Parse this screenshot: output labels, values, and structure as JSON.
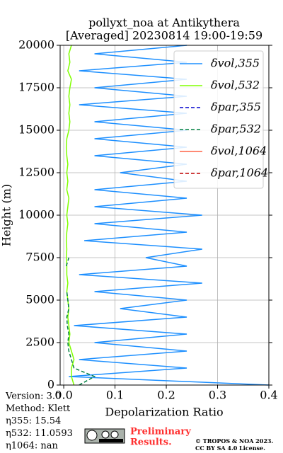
{
  "chart_data": {
    "type": "profile",
    "title": [
      "pollyxt_noa at Antikythera",
      "[Averaged] 20230814 19:00-19:59"
    ],
    "xlabel": "Depolarization Ratio",
    "ylabel": "Height (m)",
    "xlim": [
      -0.007,
      0.4
    ],
    "ylim": [
      0,
      20000
    ],
    "xticks": [
      {
        "value": 0,
        "label": "0.0"
      },
      0.1,
      0.2,
      0.3,
      0.4
    ],
    "yticks": [
      0,
      2500,
      5000,
      7500,
      10000,
      12500,
      15000,
      17500,
      20000
    ],
    "grid": true,
    "legend": "upper right",
    "y": [
      0,
      500,
      1000,
      1500,
      2000,
      2500,
      3000,
      3500,
      4000,
      4500,
      5000,
      5500,
      6000,
      6500,
      7000,
      7500,
      8000,
      8500,
      9000,
      9500,
      10000,
      10500,
      11000,
      11500,
      12000,
      12500,
      13000,
      13500,
      14000,
      14500,
      15000,
      15500,
      16000,
      16500,
      17000,
      17500,
      18000,
      18500,
      19000,
      19500,
      20000
    ],
    "series": [
      {
        "name": "δvol,355",
        "color": "#1e90ff",
        "dash": "solid",
        "values": [
          0.4,
          0.01,
          0.24,
          0.03,
          0.24,
          0.06,
          0.24,
          0.02,
          0.24,
          0.11,
          0.24,
          0.06,
          0.27,
          0.03,
          0.24,
          0.16,
          0.27,
          0.04,
          0.24,
          0.06,
          0.27,
          0.06,
          0.24,
          0.06,
          0.24,
          0.11,
          0.24,
          0.06,
          0.24,
          0.06,
          0.24,
          0.06,
          0.24,
          0.03,
          0.24,
          0.06,
          0.24,
          0.03,
          0.24,
          0.06,
          0.24
        ]
      },
      {
        "name": "δvol,532",
        "color": "#80ff00",
        "dash": "solid",
        "values": [
          0.02,
          0.015,
          0.015,
          0.02,
          0.015,
          0.01,
          0.012,
          0.01,
          0.008,
          0.01,
          0.008,
          0.006,
          0.008,
          0.006,
          0.006,
          0.005,
          0.006,
          0.005,
          0.006,
          0.008,
          0.006,
          0.008,
          0.01,
          0.006,
          0.008,
          0.006,
          0.008,
          0.006,
          0.005,
          0.006,
          0.01,
          0.012,
          0.01,
          0.012,
          0.01,
          0.012,
          0.015,
          0.008,
          0.012,
          0.01,
          0.015
        ]
      },
      {
        "name": "δpar,355",
        "color": "#0000cd",
        "dash": "dashed",
        "values": [
          null,
          null,
          null,
          null,
          null,
          null,
          null,
          null,
          null,
          null,
          null,
          null,
          null,
          null,
          null,
          null,
          null,
          null,
          null,
          null,
          null,
          null,
          null,
          null,
          null,
          null,
          null,
          null,
          null,
          null,
          null,
          null,
          null,
          null,
          null,
          null,
          null,
          null,
          null,
          null,
          null
        ]
      },
      {
        "name": "δpar,532",
        "color": "#008040",
        "dash": "dashed",
        "values": [
          0.03,
          0.06,
          0.02,
          0.015,
          0.01,
          0.008,
          0.01,
          0.007,
          0.006,
          0.01,
          0.008,
          0.006,
          null,
          null,
          0.005,
          0.01,
          null,
          null,
          null,
          null,
          null,
          null,
          0.01,
          null,
          null,
          null,
          null,
          null,
          null,
          null,
          null,
          null,
          null,
          0.015,
          null,
          null,
          null,
          null,
          null,
          null,
          0.02
        ]
      },
      {
        "name": "δvol,1064",
        "color": "#ff6347",
        "dash": "solid",
        "values": [
          null,
          null,
          null,
          null,
          null,
          null,
          null,
          null,
          null,
          null,
          null,
          null,
          null,
          null,
          null,
          null,
          null,
          null,
          null,
          null,
          null,
          null,
          null,
          null,
          null,
          null,
          null,
          null,
          null,
          null,
          null,
          null,
          null,
          null,
          null,
          null,
          null,
          null,
          null,
          null,
          null
        ]
      },
      {
        "name": "δpar,1064",
        "color": "#c00000",
        "dash": "dashed",
        "values": [
          null,
          null,
          null,
          null,
          null,
          null,
          null,
          null,
          null,
          null,
          null,
          null,
          null,
          null,
          null,
          null,
          null,
          null,
          null,
          null,
          null,
          null,
          null,
          null,
          null,
          null,
          null,
          null,
          null,
          null,
          null,
          null,
          null,
          null,
          null,
          null,
          null,
          null,
          null,
          null,
          null
        ]
      }
    ],
    "info": [
      "Version: 3.0",
      "Method: Klett",
      "η355:  15.54",
      "η532: 11.0593",
      "η1064:    nan"
    ],
    "preliminary": [
      "Preliminary",
      "Results."
    ],
    "copyright": [
      "© TROPOS & NOA 2023.",
      "CC BY SA 4.0 License."
    ]
  }
}
